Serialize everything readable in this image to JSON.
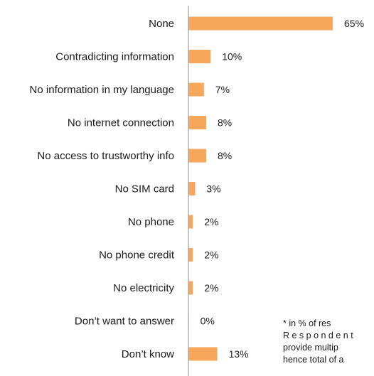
{
  "chart_data": {
    "type": "bar",
    "orientation": "horizontal",
    "title": "",
    "xlabel": "",
    "ylabel": "",
    "categories": [
      "None",
      "Contradicting information",
      "No information in my language",
      "No internet connection",
      "No access to trustworthy info",
      "No SIM card",
      "No phone",
      "No phone credit",
      "No electricity",
      "Don’t want to answer",
      "Don’t know"
    ],
    "values": [
      65,
      10,
      7,
      8,
      8,
      3,
      2,
      2,
      2,
      0,
      13
    ],
    "value_labels": [
      "65%",
      "10%",
      "7%",
      "8%",
      "8%",
      "3%",
      "2%",
      "2%",
      "2%",
      "0%",
      "13%"
    ],
    "xlim": [
      0,
      65
    ],
    "grid": false,
    "legend": "none",
    "bar_color": "#F7A75C",
    "axis_color": "#A6A6A6"
  },
  "footnote": {
    "lines": [
      "* in % of res",
      "R e s p o n d e n t",
      "provide multip",
      "hence total of a"
    ]
  }
}
